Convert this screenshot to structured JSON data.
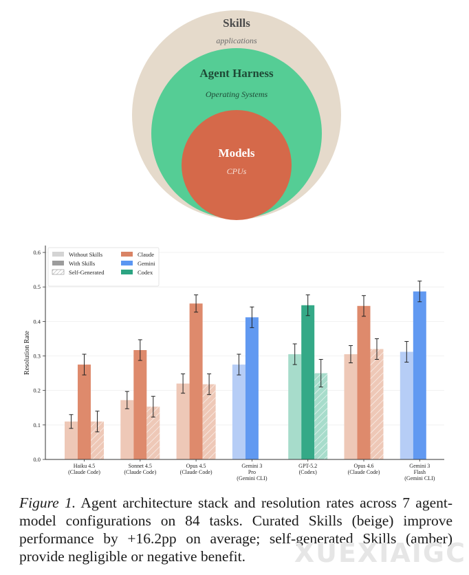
{
  "diagram": {
    "outer": {
      "title": "Skills",
      "subtitle": "applications",
      "color": "#e5dacb"
    },
    "middle": {
      "title": "Agent Harness",
      "subtitle": "Operating Systems",
      "color": "#55cd95"
    },
    "inner": {
      "title": "Models",
      "subtitle": "CPUs",
      "color": "#d5694a"
    }
  },
  "chart_data": {
    "type": "bar",
    "title": "",
    "xlabel": "",
    "ylabel": "Resolution Rate",
    "ylim": [
      0,
      0.62
    ],
    "yticks": [
      "0.0",
      "0.1",
      "0.2",
      "0.3",
      "0.4",
      "0.5",
      "0.6"
    ],
    "grid": true,
    "legend_position": "top-left",
    "legend": {
      "conditions": [
        "Without Skills",
        "With Skills",
        "Self-Generated"
      ],
      "agents": [
        {
          "name": "Claude",
          "color": "#d98365"
        },
        {
          "name": "Gemini",
          "color": "#5a96f2"
        },
        {
          "name": "Codex",
          "color": "#2ca482"
        }
      ]
    },
    "series_names": [
      "Without Skills",
      "With Skills",
      "Self-Generated"
    ],
    "colors": {
      "Claude": {
        "without": "#eec8b7",
        "with": "#de8a6c",
        "self": "#eec8b7"
      },
      "Gemini": {
        "without": "#b6cdf6",
        "with": "#6199f1",
        "self": "#b6cdf6"
      },
      "Codex": {
        "without": "#a7dccb",
        "with": "#34a987",
        "self": "#a7dccb"
      }
    },
    "groups": [
      {
        "label": [
          "Haiku 4.5",
          "(Claude Code)"
        ],
        "agent": "Claude",
        "values": [
          0.11,
          0.275,
          0.11
        ],
        "errors": [
          0.02,
          0.03,
          0.03
        ]
      },
      {
        "label": [
          "Sonnet 4.5",
          "(Claude Code)"
        ],
        "agent": "Claude",
        "values": [
          0.172,
          0.317,
          0.153
        ],
        "errors": [
          0.025,
          0.03,
          0.03
        ]
      },
      {
        "label": [
          "Opus 4.5",
          "(Claude Code)"
        ],
        "agent": "Claude",
        "values": [
          0.22,
          0.452,
          0.218
        ],
        "errors": [
          0.028,
          0.025,
          0.03
        ]
      },
      {
        "label": [
          "Gemini 3",
          "Pro",
          "(Gemini CLI)"
        ],
        "agent": "Gemini",
        "values": [
          0.275,
          0.412,
          null
        ],
        "errors": [
          0.03,
          0.03,
          null
        ]
      },
      {
        "label": [
          "GPT-5.2",
          "(Codex)"
        ],
        "agent": "Codex",
        "values": [
          0.305,
          0.447,
          0.25
        ],
        "errors": [
          0.03,
          0.03,
          0.04
        ]
      },
      {
        "label": [
          "Opus 4.6",
          "(Claude Code)"
        ],
        "agent": "Claude",
        "values": [
          0.305,
          0.445,
          0.32
        ],
        "errors": [
          0.025,
          0.03,
          0.03
        ]
      },
      {
        "label": [
          "Gemini 3",
          "Flash",
          "(Gemini CLI)"
        ],
        "agent": "Gemini",
        "values": [
          0.312,
          0.487,
          null
        ],
        "errors": [
          0.03,
          0.03,
          null
        ]
      }
    ]
  },
  "caption": {
    "label": "Figure 1.",
    "text": "Agent architecture stack and resolution rates across 7 agent-model configurations on 84 tasks. Curated Skills (beige) improve performance by +16.2pp on average; self-generated Skills (amber) provide negligible or negative benefit."
  },
  "watermark": "XUEXIAIGC"
}
